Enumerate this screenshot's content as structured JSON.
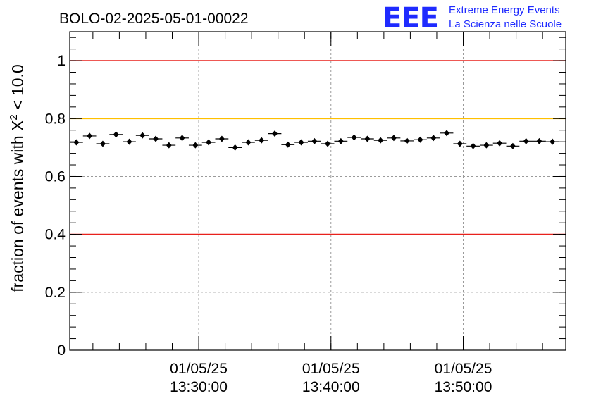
{
  "title": "BOLO-02-2025-05-01-00022",
  "logo": {
    "mark": "EEE",
    "line1": "Extreme Energy Events",
    "line2": "La Scienza nelle Scuole",
    "color": "#1f2bff"
  },
  "chart_data": {
    "type": "scatter",
    "title": "BOLO-02-2025-05-01-00022",
    "ylabel_prefix": "fraction of events with ",
    "ylabel_chi": "X",
    "ylabel_sup": "2",
    "ylabel_suffix": " < 10.0",
    "xlabel": "",
    "ylim": [
      0,
      1.1
    ],
    "y_ticks": [
      {
        "value": 0,
        "label": "0"
      },
      {
        "value": 0.2,
        "label": "0.2"
      },
      {
        "value": 0.4,
        "label": "0.4"
      },
      {
        "value": 0.6,
        "label": "0.6"
      },
      {
        "value": 0.8,
        "label": "0.8"
      },
      {
        "value": 1.0,
        "label": "1"
      }
    ],
    "x_range_minutes": [
      0,
      37.5
    ],
    "x_ticks": [
      {
        "minute": 9.75,
        "date": "01/05/25",
        "time": "13:30:00"
      },
      {
        "minute": 19.75,
        "date": "01/05/25",
        "time": "13:40:00"
      },
      {
        "minute": 29.75,
        "date": "01/05/25",
        "time": "13:50:00"
      }
    ],
    "x_minor_tick_step_minutes": 2,
    "grid": true,
    "reference_lines": [
      {
        "value": 1.0,
        "color": "#e8211c",
        "name": "upper-limit"
      },
      {
        "value": 0.8,
        "color": "#ffc000",
        "name": "warning-level"
      },
      {
        "value": 0.4,
        "color": "#e8211c",
        "name": "lower-limit"
      }
    ],
    "bin_width_minutes": 1,
    "x_start_minute": 0.5,
    "y_error": 0.008,
    "values": [
      0.718,
      0.74,
      0.713,
      0.745,
      0.72,
      0.742,
      0.73,
      0.708,
      0.733,
      0.708,
      0.718,
      0.73,
      0.7,
      0.718,
      0.725,
      0.748,
      0.71,
      0.718,
      0.722,
      0.713,
      0.722,
      0.735,
      0.73,
      0.725,
      0.733,
      0.723,
      0.727,
      0.733,
      0.75,
      0.713,
      0.705,
      0.708,
      0.715,
      0.705,
      0.722,
      0.722,
      0.72
    ],
    "marker_color": "#000000"
  }
}
